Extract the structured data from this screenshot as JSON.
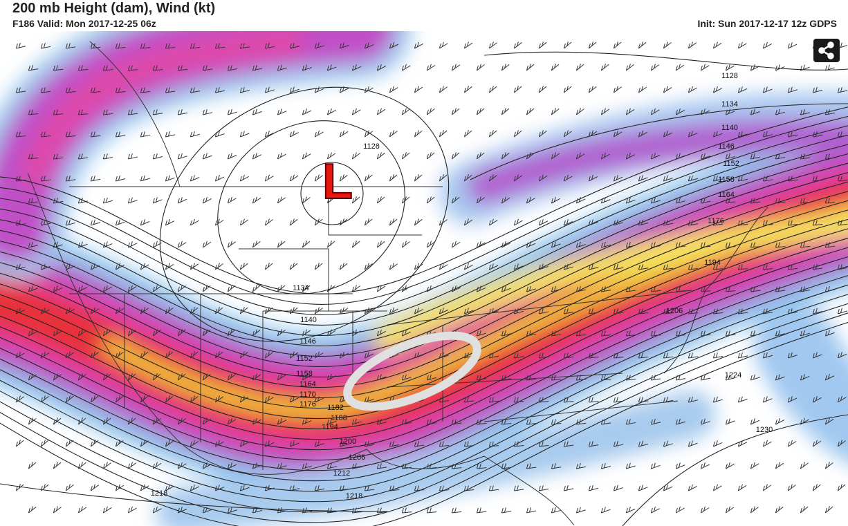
{
  "header": {
    "title": "200 mb Height (dam), Wind (kt)",
    "valid": "F186 Valid: Mon 2017-12-25 06z",
    "init": "Init: Sun 2017-12-17 12z GDPS"
  },
  "map": {
    "low_marker": "L",
    "contour_labels": [
      1128,
      1134,
      1140,
      1146,
      1152,
      1158,
      1164,
      1176,
      1194,
      1206,
      1224,
      1230,
      1128,
      1134,
      1140,
      1146,
      1152,
      1158,
      1164,
      1170,
      1176,
      1182,
      1188,
      1194,
      1200,
      1206,
      1212,
      1218,
      1218
    ]
  }
}
